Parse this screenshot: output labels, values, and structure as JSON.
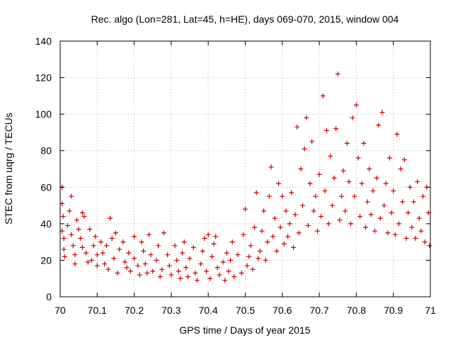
{
  "chart_data": {
    "type": "scatter",
    "title": "Rec. algo (Lon=281, Lat=45, h=HE), days 069-070, 2015, window 004",
    "xlabel": "GPS time / Days of year 2015",
    "ylabel": "STEC from uqrg / TECUs",
    "xlim": [
      70,
      71
    ],
    "ylim": [
      0,
      140
    ],
    "x_ticks": [
      70,
      70.1,
      70.2,
      70.3,
      70.4,
      70.5,
      70.6,
      70.7,
      70.8,
      70.9,
      71
    ],
    "x_tick_labels": [
      "70",
      "70.1",
      "70.2",
      "70.3",
      "70.4",
      "70.5",
      "70.6",
      "70.7",
      "70.8",
      "70.9",
      "71"
    ],
    "y_ticks": [
      0,
      20,
      40,
      60,
      80,
      100,
      120,
      140
    ],
    "y_tick_labels": [
      "0",
      "20",
      "40",
      "60",
      "80",
      "100",
      "120",
      "140"
    ],
    "grid": "dotted",
    "marker": "+",
    "color": "#cc0000",
    "points": [
      [
        70.005,
        60
      ],
      [
        70.005,
        51
      ],
      [
        70.008,
        44
      ],
      [
        70.005,
        36
      ],
      [
        70.01,
        32
      ],
      [
        70.01,
        26
      ],
      [
        70.012,
        22
      ],
      [
        70.02,
        39
      ],
      [
        70.025,
        47
      ],
      [
        70.03,
        55
      ],
      [
        70.03,
        34
      ],
      [
        70.035,
        28
      ],
      [
        70.04,
        23
      ],
      [
        70.04,
        18
      ],
      [
        70.045,
        42
      ],
      [
        70.05,
        37
      ],
      [
        70.055,
        32
      ],
      [
        70.06,
        46
      ],
      [
        70.06,
        27
      ],
      [
        70.065,
        44
      ],
      [
        70.07,
        24
      ],
      [
        70.075,
        19
      ],
      [
        70.08,
        37
      ],
      [
        70.085,
        20
      ],
      [
        70.09,
        28
      ],
      [
        70.095,
        33
      ],
      [
        70.1,
        23
      ],
      [
        70.1,
        17
      ],
      [
        70.11,
        30
      ],
      [
        70.115,
        24
      ],
      [
        70.12,
        18
      ],
      [
        70.125,
        28
      ],
      [
        70.13,
        15
      ],
      [
        70.135,
        43
      ],
      [
        70.14,
        32
      ],
      [
        70.145,
        21
      ],
      [
        70.15,
        35
      ],
      [
        70.155,
        13
      ],
      [
        70.16,
        26
      ],
      [
        70.17,
        30
      ],
      [
        70.175,
        19
      ],
      [
        70.18,
        16
      ],
      [
        70.185,
        24
      ],
      [
        70.19,
        14
      ],
      [
        70.2,
        33
      ],
      [
        70.2,
        21
      ],
      [
        70.21,
        17
      ],
      [
        70.215,
        12
      ],
      [
        70.22,
        30
      ],
      [
        70.225,
        25
      ],
      [
        70.23,
        18
      ],
      [
        70.235,
        13
      ],
      [
        70.24,
        34
      ],
      [
        70.245,
        23
      ],
      [
        70.25,
        14
      ],
      [
        70.26,
        20
      ],
      [
        70.265,
        28
      ],
      [
        70.27,
        11
      ],
      [
        70.275,
        15
      ],
      [
        70.28,
        35
      ],
      [
        70.29,
        23
      ],
      [
        70.295,
        17
      ],
      [
        70.3,
        12
      ],
      [
        70.31,
        28
      ],
      [
        70.315,
        20
      ],
      [
        70.32,
        14
      ],
      [
        70.325,
        10
      ],
      [
        70.33,
        24
      ],
      [
        70.335,
        30
      ],
      [
        70.34,
        16
      ],
      [
        70.345,
        11
      ],
      [
        70.35,
        21
      ],
      [
        70.36,
        27
      ],
      [
        70.365,
        13
      ],
      [
        70.37,
        9
      ],
      [
        70.38,
        18
      ],
      [
        70.385,
        25
      ],
      [
        70.39,
        32
      ],
      [
        70.395,
        14
      ],
      [
        70.4,
        34
      ],
      [
        70.405,
        10
      ],
      [
        70.41,
        22
      ],
      [
        70.415,
        29
      ],
      [
        70.42,
        33
      ],
      [
        70.425,
        16
      ],
      [
        70.43,
        12
      ],
      [
        70.44,
        19
      ],
      [
        70.445,
        9
      ],
      [
        70.45,
        24
      ],
      [
        70.455,
        14
      ],
      [
        70.46,
        20
      ],
      [
        70.465,
        30
      ],
      [
        70.47,
        11
      ],
      [
        70.48,
        23
      ],
      [
        70.49,
        13
      ],
      [
        70.495,
        34
      ],
      [
        70.5,
        48
      ],
      [
        70.505,
        17
      ],
      [
        70.51,
        22
      ],
      [
        70.515,
        28
      ],
      [
        70.52,
        15
      ],
      [
        70.525,
        38
      ],
      [
        70.53,
        57
      ],
      [
        70.535,
        21
      ],
      [
        70.54,
        25
      ],
      [
        70.545,
        36
      ],
      [
        70.55,
        47
      ],
      [
        70.555,
        20
      ],
      [
        70.56,
        30
      ],
      [
        70.565,
        55
      ],
      [
        70.57,
        71
      ],
      [
        70.575,
        33
      ],
      [
        70.58,
        43
      ],
      [
        70.585,
        25
      ],
      [
        70.59,
        62
      ],
      [
        70.595,
        38
      ],
      [
        70.6,
        55
      ],
      [
        70.605,
        29
      ],
      [
        70.61,
        47
      ],
      [
        70.615,
        33
      ],
      [
        70.62,
        40
      ],
      [
        70.625,
        57
      ],
      [
        70.63,
        27
      ],
      [
        70.635,
        45
      ],
      [
        70.64,
        93
      ],
      [
        70.645,
        35
      ],
      [
        70.65,
        70
      ],
      [
        70.655,
        50
      ],
      [
        70.66,
        81
      ],
      [
        70.665,
        98
      ],
      [
        70.67,
        39
      ],
      [
        70.675,
        62
      ],
      [
        70.68,
        85
      ],
      [
        70.685,
        47
      ],
      [
        70.69,
        55
      ],
      [
        70.695,
        36
      ],
      [
        70.7,
        67
      ],
      [
        70.705,
        44
      ],
      [
        70.71,
        110
      ],
      [
        70.715,
        58
      ],
      [
        70.72,
        91
      ],
      [
        70.725,
        40
      ],
      [
        70.73,
        77
      ],
      [
        70.735,
        50
      ],
      [
        70.74,
        65
      ],
      [
        70.745,
        92
      ],
      [
        70.75,
        122
      ],
      [
        70.755,
        42
      ],
      [
        70.76,
        55
      ],
      [
        70.765,
        69
      ],
      [
        70.77,
        47
      ],
      [
        70.775,
        84
      ],
      [
        70.78,
        63
      ],
      [
        70.785,
        40
      ],
      [
        70.79,
        98
      ],
      [
        70.795,
        55
      ],
      [
        70.8,
        105
      ],
      [
        70.805,
        76
      ],
      [
        70.81,
        44
      ],
      [
        70.815,
        62
      ],
      [
        70.82,
        84
      ],
      [
        70.825,
        38
      ],
      [
        70.83,
        52
      ],
      [
        70.835,
        70
      ],
      [
        70.84,
        45
      ],
      [
        70.845,
        58
      ],
      [
        70.85,
        36
      ],
      [
        70.855,
        65
      ],
      [
        70.86,
        94
      ],
      [
        70.865,
        43
      ],
      [
        70.87,
        101
      ],
      [
        70.875,
        50
      ],
      [
        70.88,
        62
      ],
      [
        70.885,
        35
      ],
      [
        70.89,
        76
      ],
      [
        70.895,
        46
      ],
      [
        70.9,
        58
      ],
      [
        70.905,
        34
      ],
      [
        70.91,
        89
      ],
      [
        70.915,
        40
      ],
      [
        70.92,
        70
      ],
      [
        70.925,
        52
      ],
      [
        70.93,
        75
      ],
      [
        70.935,
        32
      ],
      [
        70.94,
        46
      ],
      [
        70.945,
        60
      ],
      [
        70.95,
        38
      ],
      [
        70.955,
        52
      ],
      [
        70.96,
        32
      ],
      [
        70.965,
        63
      ],
      [
        70.97,
        43
      ],
      [
        70.975,
        36
      ],
      [
        70.98,
        55
      ],
      [
        70.985,
        30
      ],
      [
        70.99,
        60
      ],
      [
        70.995,
        46
      ],
      [
        70.998,
        28
      ]
    ]
  }
}
